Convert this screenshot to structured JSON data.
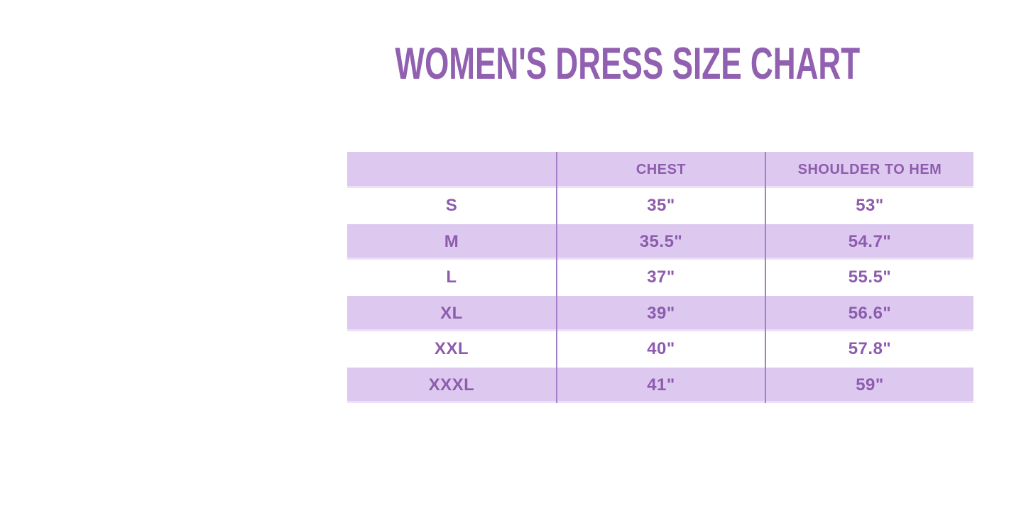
{
  "page": {
    "title": "WOMEN'S DRESS SIZE CHART"
  },
  "colors": {
    "title_purple": "#9160b0",
    "text_purple": "#8d5cad",
    "lavender_band": "#ddc9f0",
    "column_divider": "#a47ec9",
    "background": "#ffffff"
  },
  "chart_data": {
    "type": "table",
    "title": "WOMEN'S DRESS SIZE CHART",
    "columns": [
      "",
      "CHEST",
      "SHOULDER TO HEM"
    ],
    "rows": [
      {
        "size": "S",
        "chest": "35\"",
        "shoulder_to_hem": "53\""
      },
      {
        "size": "M",
        "chest": "35.5\"",
        "shoulder_to_hem": "54.7\""
      },
      {
        "size": "L",
        "chest": "37\"",
        "shoulder_to_hem": "55.5\""
      },
      {
        "size": "XL",
        "chest": "39\"",
        "shoulder_to_hem": "56.6\""
      },
      {
        "size": "XXL",
        "chest": "40\"",
        "shoulder_to_hem": "57.8\""
      },
      {
        "size": "XXXL",
        "chest": "41\"",
        "shoulder_to_hem": "59\""
      }
    ],
    "layout": {
      "row_shading": "alternating lavender/white starting with lavender header",
      "grid": "vertical column dividers only, no horizontal borders"
    }
  }
}
